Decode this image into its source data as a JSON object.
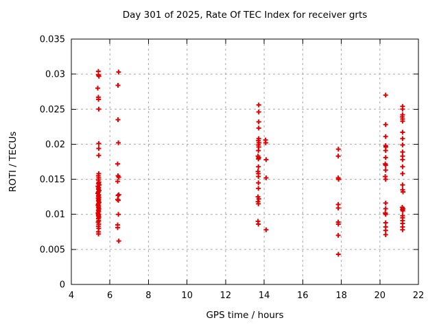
{
  "page": {
    "background": "#ffffff"
  },
  "chart_data": {
    "type": "scatter",
    "title": "Day 301 of 2025, Rate Of TEC Index for receiver grts",
    "xlabel": "GPS time / hours",
    "ylabel": "ROTI / TECUs",
    "xlim": [
      4,
      22
    ],
    "ylim": [
      0,
      0.035
    ],
    "xticks": [
      4,
      6,
      8,
      10,
      12,
      14,
      16,
      18,
      20,
      22
    ],
    "xtick_labels": [
      "4",
      "6",
      "8",
      "10",
      "12",
      "14",
      "16",
      "18",
      "20",
      "22"
    ],
    "yticks": [
      0,
      0.005,
      0.01,
      0.015,
      0.02,
      0.025,
      0.03,
      0.035
    ],
    "ytick_labels": [
      "0",
      "0.005",
      "0.01",
      "0.015",
      "0.02",
      "0.025",
      "0.03",
      "0.035"
    ],
    "grid": true,
    "grid_color": "#a6a6a6",
    "axis_color": "#000000",
    "legend": "none",
    "series": [
      {
        "name": "ROTI",
        "marker": "plus",
        "color": "#e00000",
        "points": [
          [
            5.4,
            0.0304
          ],
          [
            5.4,
            0.0299
          ],
          [
            5.43,
            0.0297
          ],
          [
            5.37,
            0.028
          ],
          [
            5.4,
            0.0267
          ],
          [
            5.41,
            0.0264
          ],
          [
            5.42,
            0.025
          ],
          [
            5.42,
            0.0201
          ],
          [
            5.42,
            0.0194
          ],
          [
            5.42,
            0.0184
          ],
          [
            5.42,
            0.0158
          ],
          [
            5.4,
            0.0155
          ],
          [
            5.42,
            0.0152
          ],
          [
            5.4,
            0.0149
          ],
          [
            5.43,
            0.0146
          ],
          [
            5.4,
            0.0144
          ],
          [
            5.45,
            0.0142
          ],
          [
            5.38,
            0.014
          ],
          [
            5.42,
            0.0138
          ],
          [
            5.4,
            0.0136
          ],
          [
            5.44,
            0.0134
          ],
          [
            5.4,
            0.0132
          ],
          [
            5.37,
            0.013
          ],
          [
            5.42,
            0.0128
          ],
          [
            5.4,
            0.0126
          ],
          [
            5.43,
            0.0124
          ],
          [
            5.39,
            0.0123
          ],
          [
            5.42,
            0.0121
          ],
          [
            5.4,
            0.0119
          ],
          [
            5.44,
            0.0117
          ],
          [
            5.4,
            0.0115
          ],
          [
            5.38,
            0.0113
          ],
          [
            5.42,
            0.0112
          ],
          [
            5.4,
            0.011
          ],
          [
            5.43,
            0.0108
          ],
          [
            5.4,
            0.0106
          ],
          [
            5.42,
            0.0104
          ],
          [
            5.38,
            0.0102
          ],
          [
            5.41,
            0.01
          ],
          [
            5.4,
            0.0098
          ],
          [
            5.43,
            0.0096
          ],
          [
            5.4,
            0.0094
          ],
          [
            5.42,
            0.0091
          ],
          [
            5.39,
            0.0089
          ],
          [
            5.42,
            0.0086
          ],
          [
            5.4,
            0.0083
          ],
          [
            5.42,
            0.008
          ],
          [
            5.4,
            0.0075
          ],
          [
            5.41,
            0.0072
          ],
          [
            6.45,
            0.0303
          ],
          [
            6.42,
            0.0284
          ],
          [
            6.42,
            0.0235
          ],
          [
            6.44,
            0.0202
          ],
          [
            6.4,
            0.0172
          ],
          [
            6.42,
            0.0155
          ],
          [
            6.46,
            0.0153
          ],
          [
            6.4,
            0.0147
          ],
          [
            6.46,
            0.0128
          ],
          [
            6.42,
            0.0127
          ],
          [
            6.4,
            0.0121
          ],
          [
            6.44,
            0.012
          ],
          [
            6.44,
            0.01
          ],
          [
            6.4,
            0.0085
          ],
          [
            6.4,
            0.0081
          ],
          [
            6.46,
            0.0062
          ],
          [
            13.72,
            0.0256
          ],
          [
            13.72,
            0.0246
          ],
          [
            13.72,
            0.0232
          ],
          [
            13.72,
            0.0223
          ],
          [
            13.72,
            0.0208
          ],
          [
            13.7,
            0.0205
          ],
          [
            13.73,
            0.0202
          ],
          [
            13.7,
            0.0199
          ],
          [
            13.72,
            0.0196
          ],
          [
            13.7,
            0.0191
          ],
          [
            13.68,
            0.0183
          ],
          [
            13.72,
            0.0181
          ],
          [
            13.7,
            0.0179
          ],
          [
            13.7,
            0.0168
          ],
          [
            13.68,
            0.0161
          ],
          [
            13.7,
            0.0158
          ],
          [
            13.7,
            0.0154
          ],
          [
            13.7,
            0.0145
          ],
          [
            13.7,
            0.0137
          ],
          [
            13.68,
            0.0125
          ],
          [
            13.72,
            0.0122
          ],
          [
            13.68,
            0.0118
          ],
          [
            13.7,
            0.0115
          ],
          [
            13.68,
            0.009
          ],
          [
            13.7,
            0.0086
          ],
          [
            14.07,
            0.0206
          ],
          [
            14.08,
            0.0202
          ],
          [
            14.1,
            0.0178
          ],
          [
            14.1,
            0.0152
          ],
          [
            14.1,
            0.0078
          ],
          [
            17.85,
            0.0193
          ],
          [
            17.84,
            0.0183
          ],
          [
            17.84,
            0.0152
          ],
          [
            17.86,
            0.015
          ],
          [
            17.84,
            0.0114
          ],
          [
            17.84,
            0.0109
          ],
          [
            17.84,
            0.0089
          ],
          [
            17.85,
            0.0086
          ],
          [
            17.84,
            0.007
          ],
          [
            17.85,
            0.0043
          ],
          [
            20.3,
            0.027
          ],
          [
            20.3,
            0.0228
          ],
          [
            20.3,
            0.0211
          ],
          [
            20.3,
            0.0198
          ],
          [
            20.31,
            0.0196
          ],
          [
            20.3,
            0.0191
          ],
          [
            20.3,
            0.0181
          ],
          [
            20.28,
            0.0172
          ],
          [
            20.3,
            0.017
          ],
          [
            20.3,
            0.0163
          ],
          [
            20.28,
            0.0154
          ],
          [
            20.3,
            0.015
          ],
          [
            20.3,
            0.0116
          ],
          [
            20.3,
            0.0108
          ],
          [
            20.28,
            0.0102
          ],
          [
            20.3,
            0.01
          ],
          [
            20.3,
            0.0088
          ],
          [
            20.3,
            0.0082
          ],
          [
            20.3,
            0.0077
          ],
          [
            20.3,
            0.0071
          ],
          [
            21.18,
            0.0254
          ],
          [
            21.18,
            0.025
          ],
          [
            21.18,
            0.0242
          ],
          [
            21.16,
            0.0239
          ],
          [
            21.18,
            0.0236
          ],
          [
            21.18,
            0.0233
          ],
          [
            21.18,
            0.0217
          ],
          [
            21.18,
            0.0208
          ],
          [
            21.18,
            0.0199
          ],
          [
            21.18,
            0.0189
          ],
          [
            21.18,
            0.0183
          ],
          [
            21.18,
            0.0178
          ],
          [
            21.18,
            0.0168
          ],
          [
            21.18,
            0.0158
          ],
          [
            21.18,
            0.0142
          ],
          [
            21.18,
            0.0135
          ],
          [
            21.2,
            0.0132
          ],
          [
            21.16,
            0.011
          ],
          [
            21.2,
            0.0108
          ],
          [
            21.17,
            0.0107
          ],
          [
            21.19,
            0.0105
          ],
          [
            21.18,
            0.0098
          ],
          [
            21.18,
            0.0095
          ],
          [
            21.18,
            0.0091
          ],
          [
            21.18,
            0.0087
          ],
          [
            21.18,
            0.0082
          ],
          [
            21.18,
            0.0078
          ]
        ]
      }
    ]
  }
}
